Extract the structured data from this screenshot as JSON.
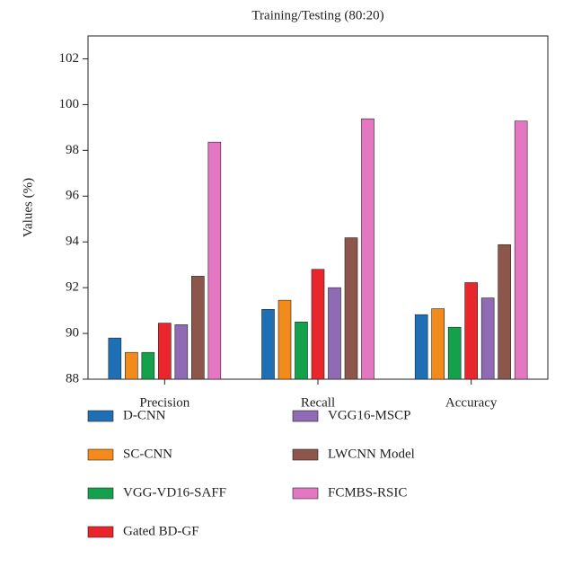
{
  "chart_data": {
    "type": "bar",
    "title": "Training/Testing (80:20)",
    "y_label": "Values (%)",
    "categories": [
      "Precision",
      "Recall",
      "Accuracy"
    ],
    "series": [
      {
        "name": "D-CNN",
        "color": "#1f6fb5",
        "values": [
          89.8,
          91.05,
          90.82
        ]
      },
      {
        "name": "SC-CNN",
        "color": "#f28b1c",
        "values": [
          89.17,
          91.45,
          91.08
        ]
      },
      {
        "name": "VGG-VD16-SAFF",
        "color": "#13a24b",
        "values": [
          89.17,
          90.5,
          90.27
        ]
      },
      {
        "name": "Gated BD-GF",
        "color": "#e8262b",
        "values": [
          90.45,
          92.8,
          92.22
        ]
      },
      {
        "name": "VGG16-MSCP",
        "color": "#8e6bb4",
        "values": [
          90.38,
          92.0,
          91.55
        ]
      },
      {
        "name": "LWCNN Model",
        "color": "#8c564b",
        "values": [
          92.5,
          94.18,
          93.88
        ]
      },
      {
        "name": "FCMBS-RSIC",
        "color": "#e377c2",
        "values": [
          98.36,
          99.38,
          99.28
        ]
      }
    ],
    "ylim": [
      88,
      103
    ],
    "yticks": [
      88,
      90,
      92,
      94,
      96,
      98,
      100,
      102
    ]
  }
}
